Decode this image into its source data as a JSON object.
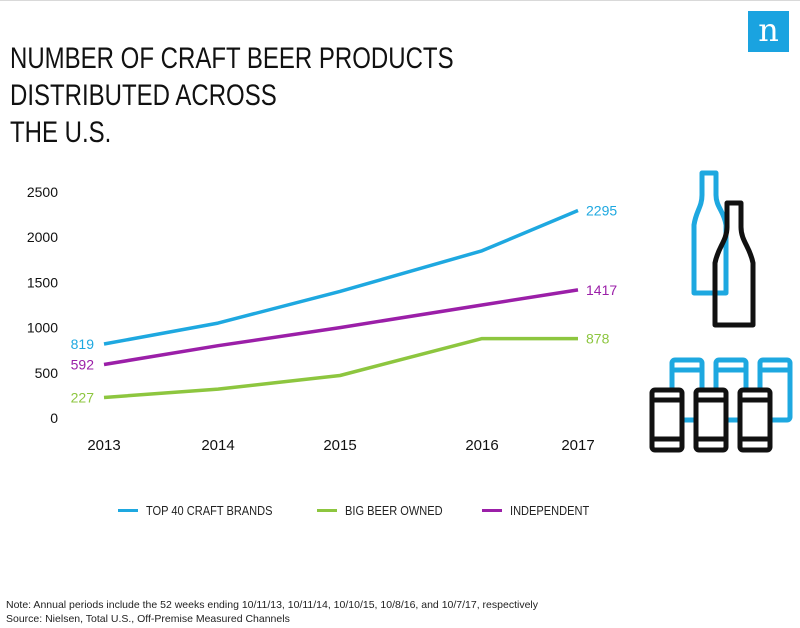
{
  "logo": {
    "text": "n",
    "color": "#1aa3e0"
  },
  "title_lines": [
    "NUMBER OF CRAFT BEER PRODUCTS DISTRIBUTED ACROSS",
    "THE U.S."
  ],
  "chart_data": {
    "type": "line",
    "title": "NUMBER OF CRAFT BEER PRODUCTS DISTRIBUTED ACROSS THE U.S.",
    "x": [
      "2013",
      "2014",
      "2015",
      "2016",
      "2017"
    ],
    "ylim": [
      0,
      2500
    ],
    "yticks": [
      0,
      500,
      1000,
      1500,
      2000,
      2500
    ],
    "grid": false,
    "legend_position": "bottom",
    "series": [
      {
        "name": "TOP 40 CRAFT BRANDS",
        "color": "#1ea8e0",
        "values": [
          819,
          1050,
          1400,
          1850,
          2295
        ],
        "start_label": "819",
        "end_label": "2295"
      },
      {
        "name": "BIG BEER OWNED",
        "color": "#8dc63f",
        "values": [
          227,
          320,
          470,
          878,
          878
        ],
        "start_label": "227",
        "end_label": "878"
      },
      {
        "name": "INDEPENDENT",
        "color": "#9b1fa8",
        "values": [
          592,
          800,
          1000,
          1250,
          1417
        ],
        "start_label": "592",
        "end_label": "1417"
      }
    ]
  },
  "notes": [
    "Note: Annual periods include the 52 weeks ending 10/11/13, 10/11/14, 10/10/15, 10/8/16, and 10/7/17, respectively",
    "Source: Nielsen, Total U.S., Off-Premise Measured Channels"
  ],
  "icons": {
    "bottles": "beer-bottles-icon",
    "cans": "beer-cans-icon",
    "blue": "#1ea8e0",
    "black": "#111111"
  }
}
